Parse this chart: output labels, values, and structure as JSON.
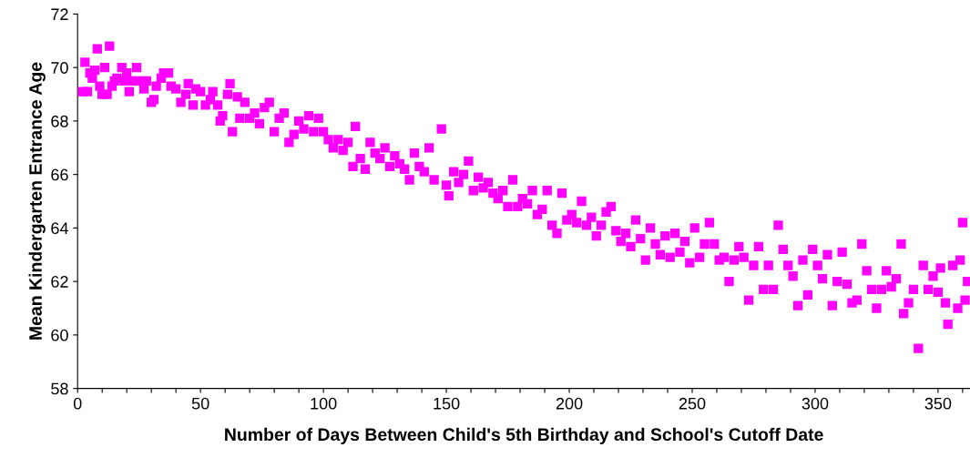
{
  "chart_data": {
    "type": "scatter",
    "xlabel": "Number of Days Between Child's 5th Birthday and School's Cutoff Date",
    "ylabel": "Mean Kindergarten Entrance Age",
    "xlim": [
      0,
      363
    ],
    "ylim": [
      58,
      72
    ],
    "yticks": [
      58,
      60,
      62,
      64,
      66,
      68,
      70,
      72
    ],
    "xticks": [
      0,
      {
        "value": 10,
        "label": null
      },
      {
        "value": 20,
        "label": null
      },
      {
        "value": 30,
        "label": null
      },
      {
        "value": 40,
        "label": null
      },
      50,
      {
        "value": 60,
        "label": null
      },
      {
        "value": 70,
        "label": null
      },
      {
        "value": 80,
        "label": null
      },
      {
        "value": 90,
        "label": null
      },
      100,
      {
        "value": 110,
        "label": null
      },
      {
        "value": 120,
        "label": null
      },
      {
        "value": 130,
        "label": null
      },
      {
        "value": 140,
        "label": null
      },
      150,
      {
        "value": 160,
        "label": null
      },
      {
        "value": 170,
        "label": null
      },
      {
        "value": 180,
        "label": null
      },
      {
        "value": 190,
        "label": null
      },
      200,
      {
        "value": 210,
        "label": null
      },
      {
        "value": 220,
        "label": null
      },
      {
        "value": 230,
        "label": null
      },
      {
        "value": 240,
        "label": null
      },
      250,
      {
        "value": 260,
        "label": null
      },
      {
        "value": 270,
        "label": null
      },
      {
        "value": 280,
        "label": null
      },
      {
        "value": 290,
        "label": null
      },
      300,
      {
        "value": 310,
        "label": null
      },
      {
        "value": 320,
        "label": null
      },
      {
        "value": 330,
        "label": null
      },
      {
        "value": 340,
        "label": null
      },
      350,
      {
        "value": 360,
        "label": null
      }
    ],
    "marker": "square",
    "grid": false,
    "legend": false,
    "series": [
      {
        "color": "#ff00ff",
        "x": [
          2,
          3,
          4,
          5,
          6,
          7,
          8,
          9,
          10,
          11,
          12,
          13,
          14,
          15,
          16,
          18,
          19,
          20,
          21,
          22,
          24,
          25,
          27,
          28,
          30,
          31,
          32,
          34,
          35,
          37,
          38,
          40,
          42,
          44,
          45,
          47,
          48,
          50,
          52,
          54,
          55,
          57,
          58,
          59,
          61,
          62,
          63,
          65,
          66,
          68,
          70,
          72,
          74,
          76,
          78,
          80,
          82,
          84,
          86,
          88,
          90,
          92,
          94,
          96,
          98,
          100,
          102,
          104,
          106,
          108,
          110,
          112,
          113,
          115,
          117,
          119,
          121,
          123,
          125,
          127,
          129,
          131,
          133,
          135,
          137,
          139,
          141,
          143,
          145,
          148,
          150,
          151,
          153,
          155,
          157,
          159,
          161,
          163,
          165,
          167,
          169,
          171,
          173,
          175,
          177,
          179,
          181,
          183,
          185,
          187,
          189,
          191,
          193,
          195,
          197,
          199,
          201,
          203,
          205,
          207,
          209,
          211,
          213,
          215,
          217,
          219,
          221,
          223,
          225,
          227,
          229,
          231,
          233,
          235,
          237,
          239,
          241,
          243,
          245,
          247,
          249,
          251,
          253,
          255,
          257,
          259,
          261,
          263,
          265,
          267,
          269,
          271,
          273,
          275,
          277,
          279,
          281,
          283,
          285,
          287,
          289,
          291,
          293,
          295,
          297,
          299,
          301,
          303,
          305,
          307,
          309,
          311,
          313,
          315,
          317,
          319,
          321,
          323,
          325,
          327,
          329,
          331,
          333,
          335,
          336,
          338,
          340,
          342,
          344,
          346,
          348,
          350,
          351,
          353,
          354,
          356,
          358,
          359,
          360,
          361,
          362
        ],
        "values": [
          69.1,
          70.2,
          69.1,
          69.8,
          69.6,
          69.9,
          70.7,
          69.3,
          69.0,
          70.0,
          69.0,
          70.8,
          69.3,
          69.5,
          69.6,
          70.0,
          69.5,
          69.8,
          69.1,
          69.5,
          70.0,
          69.5,
          69.2,
          69.5,
          68.7,
          68.8,
          69.3,
          69.6,
          69.8,
          69.8,
          69.3,
          69.2,
          68.7,
          69.0,
          69.4,
          68.6,
          69.2,
          69.1,
          68.6,
          68.8,
          69.1,
          68.6,
          68.0,
          68.2,
          69.0,
          69.4,
          67.6,
          68.9,
          68.1,
          68.7,
          68.1,
          68.3,
          67.9,
          68.5,
          68.7,
          67.6,
          68.1,
          68.3,
          67.2,
          67.5,
          68.0,
          67.7,
          68.2,
          67.6,
          68.1,
          67.6,
          67.3,
          67.0,
          67.3,
          66.9,
          67.2,
          66.3,
          67.8,
          66.6,
          66.2,
          67.2,
          66.8,
          66.6,
          67.0,
          66.3,
          66.7,
          66.4,
          66.2,
          65.8,
          66.8,
          66.3,
          66.1,
          67.0,
          65.8,
          67.7,
          65.6,
          65.2,
          66.1,
          65.7,
          66.0,
          66.5,
          65.4,
          65.9,
          65.5,
          65.7,
          65.3,
          65.1,
          65.4,
          64.8,
          65.8,
          64.8,
          65.1,
          64.9,
          65.4,
          64.5,
          64.7,
          65.4,
          64.1,
          63.8,
          65.3,
          64.3,
          64.5,
          64.2,
          65.0,
          64.1,
          64.4,
          63.7,
          64.1,
          64.6,
          64.8,
          63.9,
          63.5,
          63.8,
          63.3,
          64.3,
          63.6,
          62.8,
          64.0,
          63.4,
          63.0,
          63.7,
          62.9,
          63.8,
          63.1,
          63.5,
          62.7,
          64.0,
          62.9,
          63.4,
          64.2,
          63.4,
          62.8,
          62.9,
          62.0,
          62.8,
          63.3,
          62.9,
          61.3,
          62.6,
          63.3,
          61.7,
          62.6,
          61.7,
          64.1,
          63.2,
          62.6,
          62.2,
          61.1,
          62.8,
          61.5,
          63.2,
          62.6,
          62.1,
          63.0,
          61.1,
          62.0,
          63.1,
          61.9,
          61.2,
          61.3,
          63.4,
          62.4,
          61.7,
          61.0,
          61.7,
          62.4,
          61.8,
          62.1,
          63.4,
          60.8,
          61.2,
          61.7,
          59.5,
          62.6,
          61.7,
          62.2,
          61.6,
          62.5,
          61.2,
          60.4,
          62.6,
          61.0,
          62.8,
          64.2,
          61.3,
          62.0
        ]
      }
    ]
  }
}
